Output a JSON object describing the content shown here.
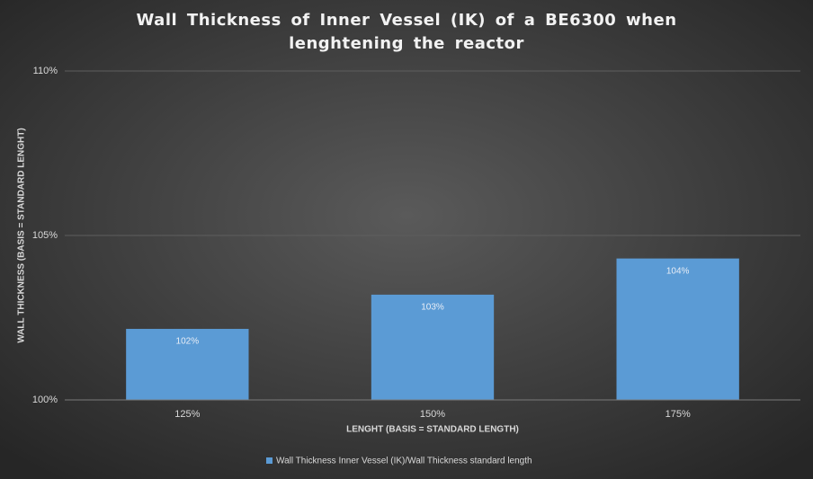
{
  "chart_data": {
    "type": "bar",
    "title": "Wall Thickness of Inner Vessel (IK) of a BE6300 when lenghtening the reactor",
    "x_label": "LENGHT (BASIS = STANDARD LENGTH)",
    "y_label": "WALL THICKNESS (BASIS = STANDARD LENGHT)",
    "categories": [
      "125%",
      "150%",
      "175%"
    ],
    "series": [
      {
        "name": "Wall Thickness Inner Vessel (IK)/Wall Thickness standard length",
        "color": "#5b9bd5",
        "values": [
          102.16,
          103.2,
          104.3
        ],
        "value_labels": [
          "102%",
          "103%",
          "104%"
        ]
      }
    ],
    "ylim": [
      100,
      110
    ],
    "yticks": [
      {
        "value": 100,
        "label": "100%"
      },
      {
        "value": 105,
        "label": "105%"
      },
      {
        "value": 110,
        "label": "110%"
      }
    ],
    "grid": true,
    "legend": "bottom"
  }
}
